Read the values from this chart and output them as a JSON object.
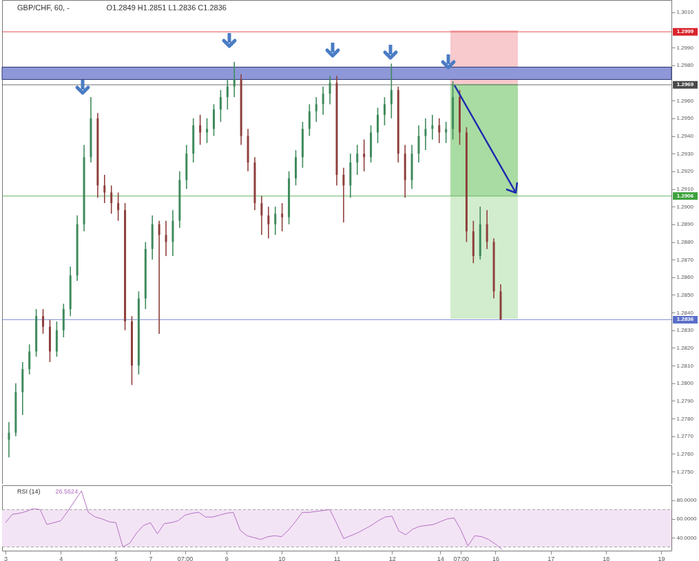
{
  "chart_data": [
    {
      "type": "candlestick",
      "title": "GBP/CHF, 60, -",
      "subtitle": "O1.2849  H1.2851  L1.2836  C1.2836",
      "categories": [
        null,
        null,
        null,
        null,
        null,
        null,
        null,
        null,
        null,
        null,
        null,
        null,
        null,
        null,
        null,
        null,
        null,
        null,
        null,
        null,
        null,
        null,
        null,
        null,
        null,
        null,
        null,
        null,
        null,
        null,
        null,
        null,
        null,
        null,
        null,
        null,
        null,
        null,
        null,
        null,
        null,
        null,
        null,
        null,
        null,
        null,
        null,
        null,
        null,
        null,
        null,
        null,
        null,
        null,
        null,
        null,
        null,
        null,
        null,
        null,
        null,
        null,
        null,
        null,
        null,
        null,
        null,
        null,
        null,
        null,
        null,
        null,
        null,
        null,
        null,
        null,
        null,
        null,
        null,
        null,
        null,
        null,
        null,
        null,
        null,
        null,
        null,
        null,
        null,
        null,
        null,
        null,
        null,
        null,
        null,
        null,
        null
      ],
      "ohlc": [
        [
          1.2768,
          1.2778,
          1.2758,
          1.2772
        ],
        [
          1.2772,
          1.28,
          1.277,
          1.2795
        ],
        [
          1.2795,
          1.2812,
          1.2782,
          1.2808
        ],
        [
          1.2808,
          1.2822,
          1.2805,
          1.2818
        ],
        [
          1.2818,
          1.2842,
          1.2815,
          1.2838
        ],
        [
          1.2838,
          1.2842,
          1.2828,
          1.2832
        ],
        [
          1.2832,
          1.2836,
          1.2812,
          1.2818
        ],
        [
          1.2818,
          1.2835,
          1.2815,
          1.283
        ],
        [
          1.283,
          1.2845,
          1.2826,
          1.2842
        ],
        [
          1.2842,
          1.2866,
          1.2838,
          1.2861
        ],
        [
          1.2861,
          1.2895,
          1.2858,
          1.289
        ],
        [
          1.289,
          1.2935,
          1.2886,
          1.2928
        ],
        [
          1.2928,
          1.2962,
          1.2925,
          1.295
        ],
        [
          1.295,
          1.2953,
          1.2905,
          1.2912
        ],
        [
          1.2912,
          1.2918,
          1.2902,
          1.2908
        ],
        [
          1.2908,
          1.2912,
          1.2896,
          1.2902
        ],
        [
          1.2902,
          1.2908,
          1.2892,
          1.2898
        ],
        [
          1.2898,
          1.2902,
          1.283,
          1.2835
        ],
        [
          1.2835,
          1.2838,
          1.2799,
          1.281
        ],
        [
          1.281,
          1.2852,
          1.2805,
          1.2848
        ],
        [
          1.2848,
          1.288,
          1.2842,
          1.2876
        ],
        [
          1.2876,
          1.2895,
          1.287,
          1.289
        ],
        [
          1.289,
          1.2892,
          1.2828,
          1.2884
        ],
        [
          1.2884,
          1.2892,
          1.2872,
          1.288
        ],
        [
          1.288,
          1.2898,
          1.2872,
          1.2892
        ],
        [
          1.2892,
          1.292,
          1.2888,
          1.2915
        ],
        [
          1.2915,
          1.2935,
          1.291,
          1.293
        ],
        [
          1.293,
          1.295,
          1.2925,
          1.2946
        ],
        [
          1.2946,
          1.2952,
          1.2935,
          1.2942
        ],
        [
          1.2942,
          1.295,
          1.2936,
          1.2944
        ],
        [
          1.2944,
          1.2958,
          1.294,
          1.2955
        ],
        [
          1.2955,
          1.2966,
          1.2948,
          1.2962
        ],
        [
          1.2962,
          1.2972,
          1.2955,
          1.2968
        ],
        [
          1.2968,
          1.2982,
          1.2962,
          1.2972
        ],
        [
          1.2972,
          1.2975,
          1.2935,
          1.294
        ],
        [
          1.294,
          1.2944,
          1.292,
          1.2925
        ],
        [
          1.2925,
          1.2928,
          1.2898,
          1.2902
        ],
        [
          1.2902,
          1.2906,
          1.2884,
          1.2895
        ],
        [
          1.2895,
          1.29,
          1.2882,
          1.289
        ],
        [
          1.289,
          1.29,
          1.2884,
          1.2896
        ],
        [
          1.2896,
          1.2902,
          1.2886,
          1.2894
        ],
        [
          1.2894,
          1.292,
          1.289,
          1.2916
        ],
        [
          1.2916,
          1.2932,
          1.2912,
          1.2928
        ],
        [
          1.2928,
          1.2948,
          1.2922,
          1.2944
        ],
        [
          1.2944,
          1.2958,
          1.294,
          1.2954
        ],
        [
          1.2954,
          1.2962,
          1.2948,
          1.2958
        ],
        [
          1.2958,
          1.2968,
          1.2952,
          1.2964
        ],
        [
          1.2964,
          1.2974,
          1.2958,
          1.297
        ],
        [
          1.297,
          1.2974,
          1.2912,
          1.2918
        ],
        [
          1.2918,
          1.2922,
          1.2891,
          1.2912
        ],
        [
          1.2912,
          1.293,
          1.2905,
          1.2925
        ],
        [
          1.2925,
          1.2935,
          1.2918,
          1.293
        ],
        [
          1.293,
          1.2938,
          1.292,
          1.2928
        ],
        [
          1.2928,
          1.2946,
          1.2925,
          1.2942
        ],
        [
          1.2942,
          1.2956,
          1.2936,
          1.2952
        ],
        [
          1.2952,
          1.2962,
          1.2946,
          1.2958
        ],
        [
          1.2958,
          1.2981,
          1.295,
          1.2966
        ],
        [
          1.2966,
          1.2968,
          1.2925,
          1.293
        ],
        [
          1.293,
          1.2935,
          1.2905,
          1.2915
        ],
        [
          1.2915,
          1.2935,
          1.291,
          1.293
        ],
        [
          1.293,
          1.2946,
          1.2925,
          1.294
        ],
        [
          1.294,
          1.295,
          1.2932,
          1.2944
        ],
        [
          1.2944,
          1.2952,
          1.2938,
          1.2946
        ],
        [
          1.2946,
          1.295,
          1.2936,
          1.2942
        ],
        [
          1.2942,
          1.2948,
          1.2936,
          1.2944
        ],
        [
          1.2944,
          1.2971,
          1.2938,
          1.2962
        ],
        [
          1.2962,
          1.2966,
          1.2935,
          1.2942
        ],
        [
          1.2942,
          1.2945,
          1.288,
          1.2886
        ],
        [
          1.2886,
          1.2892,
          1.2868,
          1.2872
        ],
        [
          1.2872,
          1.29,
          1.287,
          1.289
        ],
        [
          1.289,
          1.2898,
          1.2876,
          1.288
        ],
        [
          1.288,
          1.2882,
          1.2848,
          1.2852
        ],
        [
          1.2852,
          1.2856,
          1.2836,
          1.2836
        ],
        null,
        null,
        null,
        null,
        null,
        null,
        null,
        null,
        null,
        null,
        null,
        null,
        null,
        null,
        null,
        null,
        null,
        null,
        null,
        null,
        null,
        null,
        null,
        null
      ],
      "ylim": [
        1.2743,
        1.3017
      ],
      "yticks": [
        {
          "value": 1.275,
          "label": "1.2750"
        },
        {
          "value": 1.276,
          "label": "1.2760"
        },
        {
          "value": 1.277,
          "label": "1.2770"
        },
        {
          "value": 1.278,
          "label": "1.2780"
        },
        {
          "value": 1.279,
          "label": "1.2790"
        },
        {
          "value": 1.28,
          "label": "1.2800"
        },
        {
          "value": 1.281,
          "label": "1.2810"
        },
        {
          "value": 1.282,
          "label": "1.2820"
        },
        {
          "value": 1.283,
          "label": "1.2830"
        },
        {
          "value": 1.284,
          "label": "1.2840"
        },
        {
          "value": 1.285,
          "label": "1.2850"
        },
        {
          "value": 1.286,
          "label": "1.2860"
        },
        {
          "value": 1.287,
          "label": "1.2870"
        },
        {
          "value": 1.288,
          "label": "1.2880"
        },
        {
          "value": 1.289,
          "label": "1.2890"
        },
        {
          "value": 1.29,
          "label": "1.2900"
        },
        {
          "value": 1.291,
          "label": "1.2910"
        },
        {
          "value": 1.292,
          "label": "1.2920"
        },
        {
          "value": 1.293,
          "label": "1.2930"
        },
        {
          "value": 1.294,
          "label": "1.2940"
        },
        {
          "value": 1.295,
          "label": "1.2950"
        },
        {
          "value": 1.296,
          "label": "1.2960"
        },
        {
          "value": 1.298,
          "label": "1.2980"
        },
        {
          "value": 1.299,
          "label": "1.2990"
        },
        {
          "value": 1.301,
          "label": "1.3010"
        }
      ],
      "tick_labels": "y",
      "bands": [
        {
          "axis": "y",
          "from": 1.2972,
          "to": 1.2979,
          "color": "#8e98d8"
        }
      ],
      "ref_lines": [
        {
          "axis": "y",
          "value": 1.2999,
          "label": "1.2999",
          "color": "#d9232a"
        },
        {
          "axis": "y",
          "value": 1.2969,
          "label": "1.2969",
          "color": "#4a4a4a"
        },
        {
          "axis": "y",
          "value": 1.2906,
          "label": "1.2906",
          "color": "#3ca13c"
        },
        {
          "axis": "y",
          "value": 1.2836,
          "label": "1.2836",
          "color": "#5b6fc9"
        }
      ]
    },
    {
      "type": "line",
      "title": "RSI (14)",
      "annotations": [
        "26.5624"
      ],
      "categories": [
        "3",
        null,
        null,
        null,
        null,
        null,
        null,
        null,
        "4",
        null,
        null,
        null,
        null,
        null,
        null,
        null,
        "5",
        null,
        null,
        null,
        null,
        "7",
        null,
        null,
        null,
        null,
        "07:00",
        null,
        null,
        null,
        null,
        null,
        "9",
        null,
        null,
        null,
        null,
        null,
        null,
        null,
        "10",
        null,
        null,
        null,
        null,
        null,
        null,
        null,
        "11",
        null,
        null,
        null,
        null,
        null,
        null,
        null,
        "12",
        null,
        null,
        null,
        null,
        null,
        null,
        "14",
        null,
        null,
        "07:00",
        null,
        null,
        null,
        null,
        "16",
        null,
        null,
        null,
        null,
        null,
        null,
        null,
        "17",
        null,
        null,
        null,
        null,
        null,
        null,
        null,
        "18",
        null,
        null,
        null,
        null,
        null,
        null,
        null,
        "19",
        null
      ],
      "series": [
        {
          "color": "#b36fc4",
          "values": [
            56,
            65,
            66,
            68,
            71,
            70,
            54,
            56,
            58,
            68,
            79,
            90,
            67,
            62,
            60,
            57,
            56,
            30,
            34,
            45,
            53,
            56,
            44,
            55,
            56,
            58,
            64,
            66,
            67,
            62,
            62,
            64,
            66,
            67,
            48,
            42,
            40,
            38,
            41,
            42,
            41,
            48,
            57,
            67,
            67,
            68,
            69,
            70,
            55,
            39,
            42,
            45,
            49,
            53,
            58,
            62,
            63,
            47,
            43,
            49,
            52,
            53,
            54,
            57,
            60,
            61,
            48,
            31,
            42,
            41,
            38,
            33,
            27,
            null,
            null,
            null,
            null,
            null,
            null,
            null,
            null,
            null,
            null,
            null,
            null,
            null,
            null,
            null,
            null,
            null,
            null,
            null,
            null,
            null,
            null,
            null,
            null
          ]
        }
      ],
      "ylim": [
        26,
        96
      ],
      "yticks": [
        {
          "value": 40,
          "label": "40.0000"
        },
        {
          "value": 60,
          "label": "60.0000"
        },
        {
          "value": 80,
          "label": "80.0000"
        }
      ],
      "bands": [
        {
          "axis": "y",
          "from": 30,
          "to": 70,
          "color": "#f3e4f5"
        }
      ],
      "ref_lines": [
        {
          "axis": "y",
          "value": 70,
          "color": "#8a8a8a",
          "line_style": "dashed"
        },
        {
          "axis": "y",
          "value": 30,
          "color": "#8a8a8a",
          "line_style": "dashed"
        }
      ]
    }
  ]
}
